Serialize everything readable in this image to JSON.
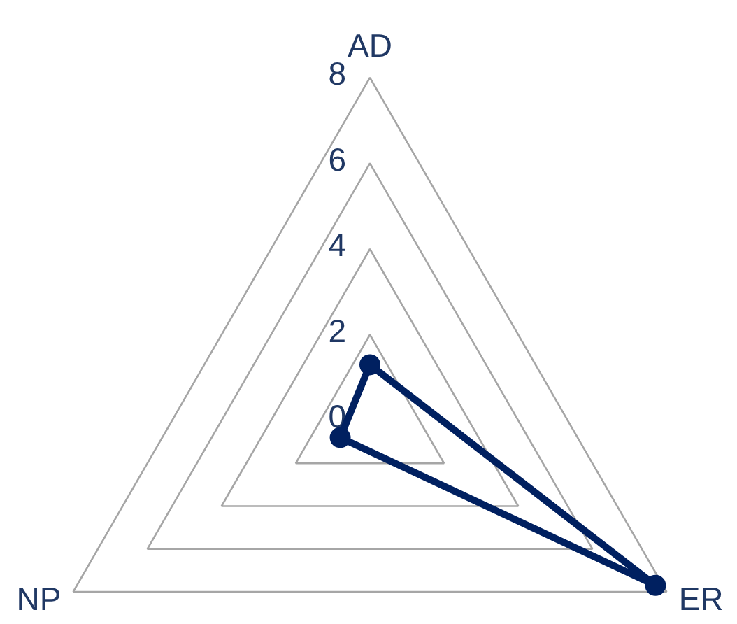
{
  "chart_data": {
    "type": "radar",
    "categories": [
      "AD",
      "ER",
      "NP"
    ],
    "series": [
      {
        "color": "#002060",
        "values": [
          1.3,
          7.7,
          0.8
        ]
      }
    ],
    "ylim": [
      0,
      8
    ],
    "yticks": [
      0,
      2,
      4,
      6,
      8
    ],
    "grid": true,
    "marker": "circle",
    "line_style": "solid"
  }
}
